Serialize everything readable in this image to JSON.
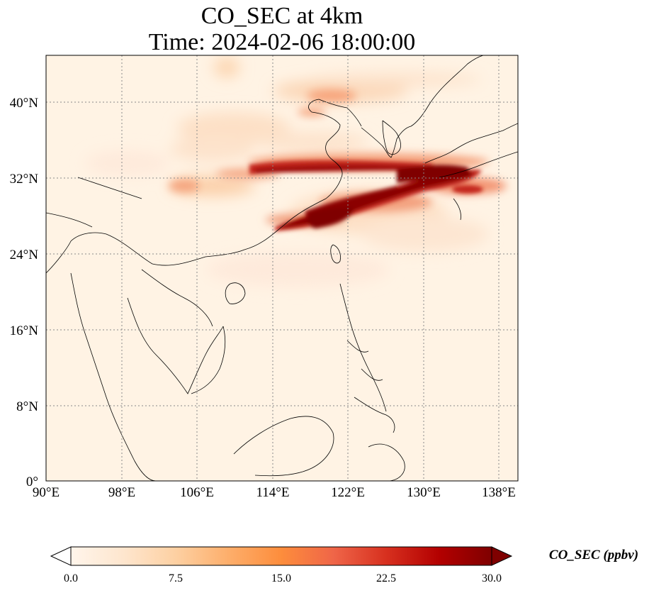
{
  "title": {
    "line1": "CO_SEC at 4km",
    "line2": "Time: 2024-02-06 18:00:00"
  },
  "map": {
    "lon_range": [
      90,
      140
    ],
    "lat_range": [
      0,
      44
    ],
    "lon_ticks": [
      {
        "value": 90,
        "label": "90°E"
      },
      {
        "value": 98,
        "label": "98°E"
      },
      {
        "value": 106,
        "label": "106°E"
      },
      {
        "value": 114,
        "label": "114°E"
      },
      {
        "value": 122,
        "label": "122°E"
      },
      {
        "value": 130,
        "label": "130°E"
      },
      {
        "value": 138,
        "label": "138°E"
      }
    ],
    "lat_ticks": [
      {
        "value": 0,
        "label": "0°"
      },
      {
        "value": 8,
        "label": "8°N"
      },
      {
        "value": 16,
        "label": "16°N"
      },
      {
        "value": 24,
        "label": "24°N"
      },
      {
        "value": 32,
        "label": "32°N"
      },
      {
        "value": 40,
        "label": "40°N"
      }
    ],
    "gridlines": true,
    "gridline_style": "dotted"
  },
  "colorbar": {
    "label": "CO_SEC (ppbv)",
    "min": 0.0,
    "max": 30.0,
    "extend": "both",
    "ticks": [
      "0.0",
      "7.5",
      "15.0",
      "22.5",
      "30.0"
    ],
    "colormap": [
      "#fff5eb",
      "#fee6ce",
      "#fdd0a2",
      "#fdae6b",
      "#fd8d3c",
      "#f16913",
      "#d94801",
      "#a63603",
      "#7f2704"
    ],
    "under_color": "#ffffff",
    "over_color": "#7f0000"
  },
  "colors": {
    "background_field": "#fff3e4",
    "coastline": "#000000",
    "gridline": "#8a8a8a"
  }
}
